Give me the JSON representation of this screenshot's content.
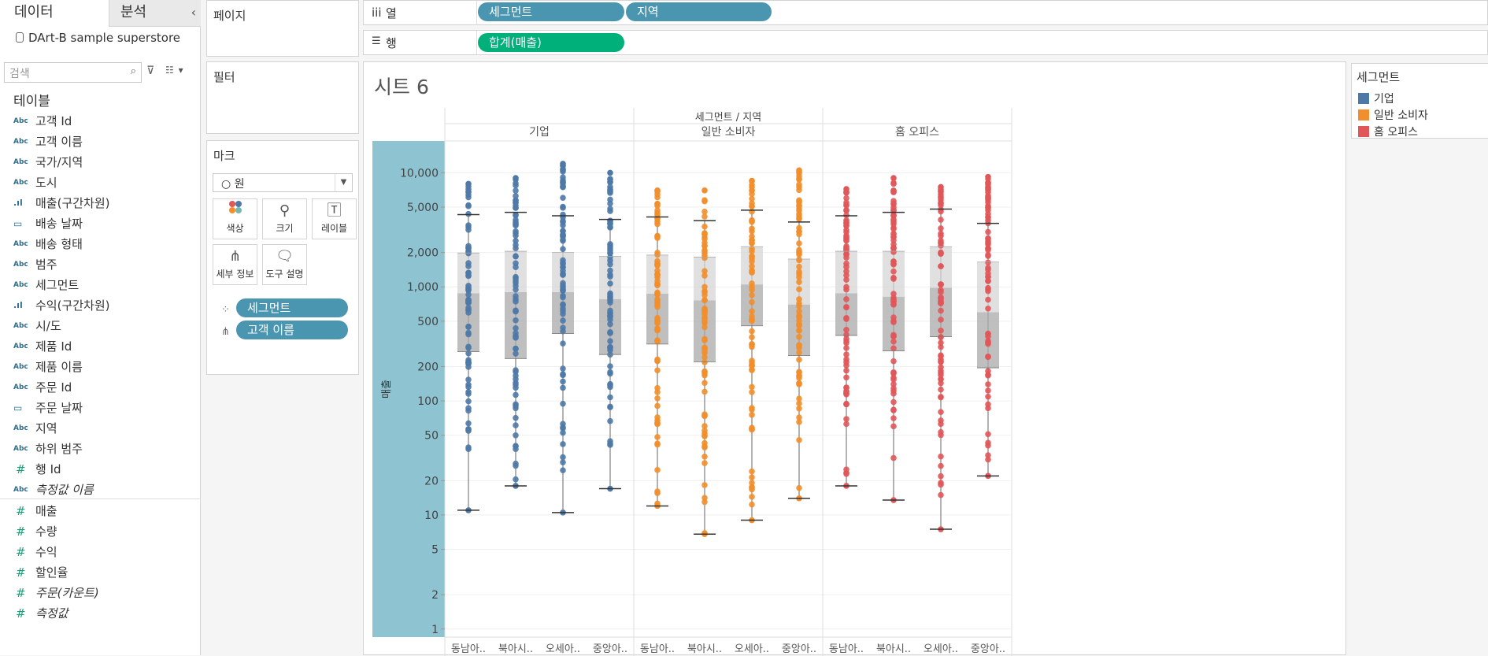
{
  "datapane": {
    "tab_data": "데이터",
    "tab_analysis": "분석",
    "collapse_glyph": "‹",
    "datasource": "DArt-B sample superstore",
    "search_placeholder": "검색",
    "tables_title": "테이블",
    "fields": [
      {
        "type": "Abc",
        "label": "고객 Id"
      },
      {
        "type": "Abc",
        "label": "고객 이름"
      },
      {
        "type": "Abc",
        "label": "국가/지역"
      },
      {
        "type": "Abc",
        "label": "도시"
      },
      {
        "type": "bars",
        "label": "매출(구간차원)"
      },
      {
        "type": "cal",
        "label": "배송 날짜"
      },
      {
        "type": "Abc",
        "label": "배송 형태"
      },
      {
        "type": "Abc",
        "label": "범주"
      },
      {
        "type": "Abc",
        "label": "세그먼트"
      },
      {
        "type": "bars",
        "label": "수익(구간차원)"
      },
      {
        "type": "Abc",
        "label": "시/도"
      },
      {
        "type": "Abc",
        "label": "제품 Id"
      },
      {
        "type": "Abc",
        "label": "제품 이름"
      },
      {
        "type": "Abc",
        "label": "주문 Id"
      },
      {
        "type": "cal",
        "label": "주문 날짜"
      },
      {
        "type": "Abc",
        "label": "지역"
      },
      {
        "type": "Abc",
        "label": "하위 범주"
      },
      {
        "type": "hash",
        "label": "행 Id"
      },
      {
        "type": "Abc",
        "label": "측정값 이름",
        "italic": true
      }
    ],
    "measures": [
      {
        "type": "hash",
        "label": "매출"
      },
      {
        "type": "hash",
        "label": "수량"
      },
      {
        "type": "hash",
        "label": "수익"
      },
      {
        "type": "hash",
        "label": "할인율"
      },
      {
        "type": "hash",
        "label": "주문(카운트)",
        "italic": true
      },
      {
        "type": "hash",
        "label": "측정값",
        "italic": true
      }
    ]
  },
  "pages": {
    "title": "페이지"
  },
  "filters": {
    "title": "필터"
  },
  "columns": {
    "label": "열",
    "icon": "iii",
    "pills": [
      "세그먼트",
      "지역"
    ]
  },
  "rows": {
    "label": "행",
    "icon": "☰",
    "pills": [
      "합계(매출)"
    ]
  },
  "marks": {
    "title": "마크",
    "type": "원",
    "buttons": [
      "색상",
      "크기",
      "레이블",
      "세부 정보",
      "도구 설명"
    ],
    "cards": [
      "세그먼트",
      "고객 이름"
    ]
  },
  "sheet": {
    "title": "시트 6"
  },
  "legend": {
    "title": "세그먼트",
    "items": [
      {
        "label": "기업",
        "color": "#4e79a7"
      },
      {
        "label": "일반 소비자",
        "color": "#f28e2b"
      },
      {
        "label": "홈 오피스",
        "color": "#e15759"
      }
    ]
  },
  "chart_data": {
    "type": "scatter",
    "header": "세그먼트 / 지역",
    "ylabel": "매출",
    "yscale": "log",
    "ylim": [
      0.85,
      19000
    ],
    "yticks": [
      1,
      2,
      5,
      10,
      20,
      50,
      100,
      200,
      500,
      1000,
      2000,
      5000,
      10000
    ],
    "ytick_labels": [
      "1",
      "2",
      "5",
      "10",
      "20",
      "50",
      "100",
      "200",
      "500",
      "1,000",
      "2,000",
      "5,000",
      "10,000"
    ],
    "panes": [
      {
        "segment": "기업",
        "color": "#4e79a7",
        "regions": [
          {
            "label": "동남아..",
            "min": 11,
            "q1": 270,
            "median": 880,
            "q3": 1980,
            "max": 4300,
            "top": 8000
          },
          {
            "label": "북아시..",
            "min": 18,
            "q1": 235,
            "median": 900,
            "q3": 2050,
            "max": 4500,
            "top": 9000
          },
          {
            "label": "오세아..",
            "min": 10.5,
            "q1": 390,
            "median": 900,
            "q3": 2000,
            "max": 4200,
            "top": 12000
          },
          {
            "label": "중앙아..",
            "min": 17,
            "q1": 255,
            "median": 780,
            "q3": 1850,
            "max": 3900,
            "top": 10000
          }
        ]
      },
      {
        "segment": "일반 소비자",
        "color": "#f28e2b",
        "regions": [
          {
            "label": "동남아..",
            "min": 12,
            "q1": 315,
            "median": 870,
            "q3": 1900,
            "max": 4100,
            "top": 7000
          },
          {
            "label": "북아시..",
            "min": 6.8,
            "q1": 220,
            "median": 760,
            "q3": 1820,
            "max": 3800,
            "top": 7000
          },
          {
            "label": "오세아..",
            "min": 9,
            "q1": 455,
            "median": 1050,
            "q3": 2250,
            "max": 4700,
            "top": 8500
          },
          {
            "label": "중앙아..",
            "min": 14,
            "q1": 250,
            "median": 700,
            "q3": 1750,
            "max": 3700,
            "top": 10500
          }
        ]
      },
      {
        "segment": "홈 오피스",
        "color": "#e15759",
        "regions": [
          {
            "label": "동남아..",
            "min": 18,
            "q1": 375,
            "median": 880,
            "q3": 2050,
            "max": 4200,
            "top": 7200
          },
          {
            "label": "북아시..",
            "min": 13.5,
            "q1": 275,
            "median": 820,
            "q3": 2050,
            "max": 4500,
            "top": 9000
          },
          {
            "label": "오세아..",
            "min": 7.5,
            "q1": 365,
            "median": 980,
            "q3": 2250,
            "max": 4800,
            "top": 7500
          },
          {
            "label": "중앙아..",
            "min": 22,
            "q1": 195,
            "median": 600,
            "q3": 1650,
            "max": 3600,
            "top": 9200
          }
        ]
      }
    ]
  }
}
